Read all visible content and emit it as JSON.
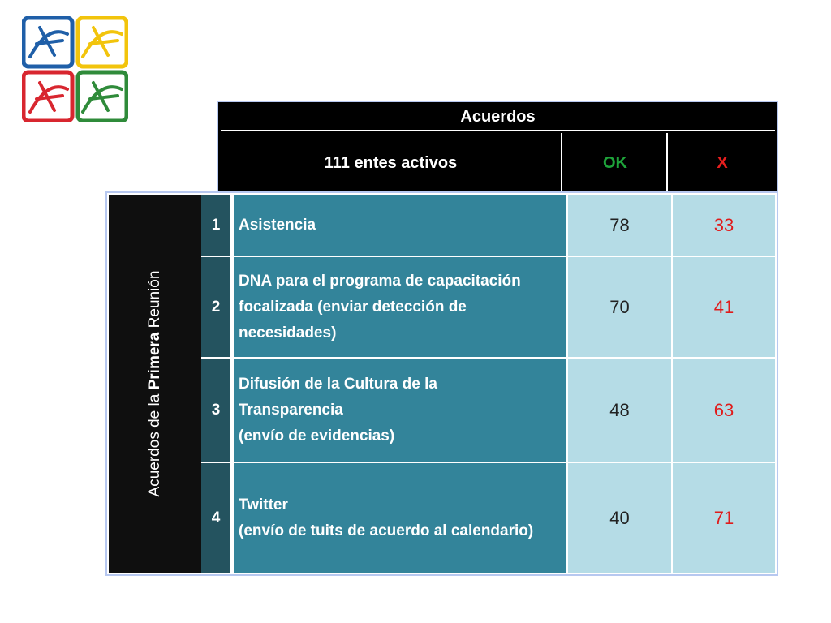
{
  "table": {
    "title": "Acuerdos",
    "header_entes": "111 entes activos",
    "header_ok": "OK",
    "header_x": "X",
    "side_label_pre": "Acuerdos de la ",
    "side_label_bold": "Primera",
    "side_label_post": " Reunión",
    "rows": [
      {
        "num": "1",
        "lines": [
          "Asistencia"
        ],
        "ok": "78",
        "x": "33"
      },
      {
        "num": "2",
        "lines": [
          "DNA para el programa de capacitación",
          "focalizada (enviar detección de",
          "necesidades)"
        ],
        "ok": "70",
        "x": "41"
      },
      {
        "num": "3",
        "lines": [
          "Difusión de la Cultura de la",
          "Transparencia",
          "(envío de evidencias)"
        ],
        "ok": "48",
        "x": "63"
      },
      {
        "num": "4",
        "lines": [
          "Twitter",
          "(envío de tuits de acuerdo al calendario)"
        ],
        "ok": "40",
        "x": "71"
      }
    ]
  },
  "colors": {
    "logo_blue": "#1f5fa8",
    "logo_yellow": "#f2c40c",
    "logo_red": "#d8262f",
    "logo_green": "#2f8b3a",
    "ok_green": "#1ea33a",
    "x_red": "#e81e1e"
  }
}
